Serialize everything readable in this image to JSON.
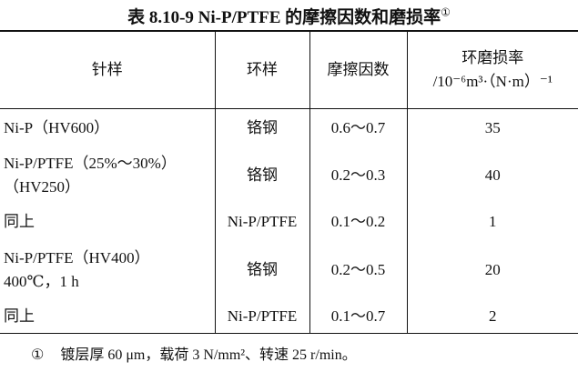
{
  "title": {
    "text": "表 8.10-9  Ni-P/PTFE 的摩擦因数和磨损率",
    "note_mark": "①"
  },
  "table": {
    "header": [
      "针样",
      "环样",
      "摩擦因数",
      [
        "环磨损率",
        "/10⁻⁶m³·（N·m）⁻¹"
      ]
    ],
    "rows": [
      [
        [
          "Ni-P（HV600）"
        ],
        "铬钢",
        "0.6～0.7",
        35
      ],
      [
        [
          "Ni-P/PTFE（25%～30%）",
          "（HV250）"
        ],
        "铬钢",
        "0.2～0.3",
        40
      ],
      [
        [
          "同上"
        ],
        "Ni-P/PTFE",
        "0.1～0.2",
        1
      ],
      [
        [
          "Ni-P/PTFE（HV400）",
          "400℃，1 h"
        ],
        "铬钢",
        "0.2～0.5",
        20
      ],
      [
        [
          "同上"
        ],
        "Ni-P/PTFE",
        "0.1～0.7",
        2
      ]
    ]
  },
  "footnote": {
    "mark": "①",
    "text": "镀层厚 60 μm，载荷 3 N/mm²、转速 25 r/min。"
  }
}
